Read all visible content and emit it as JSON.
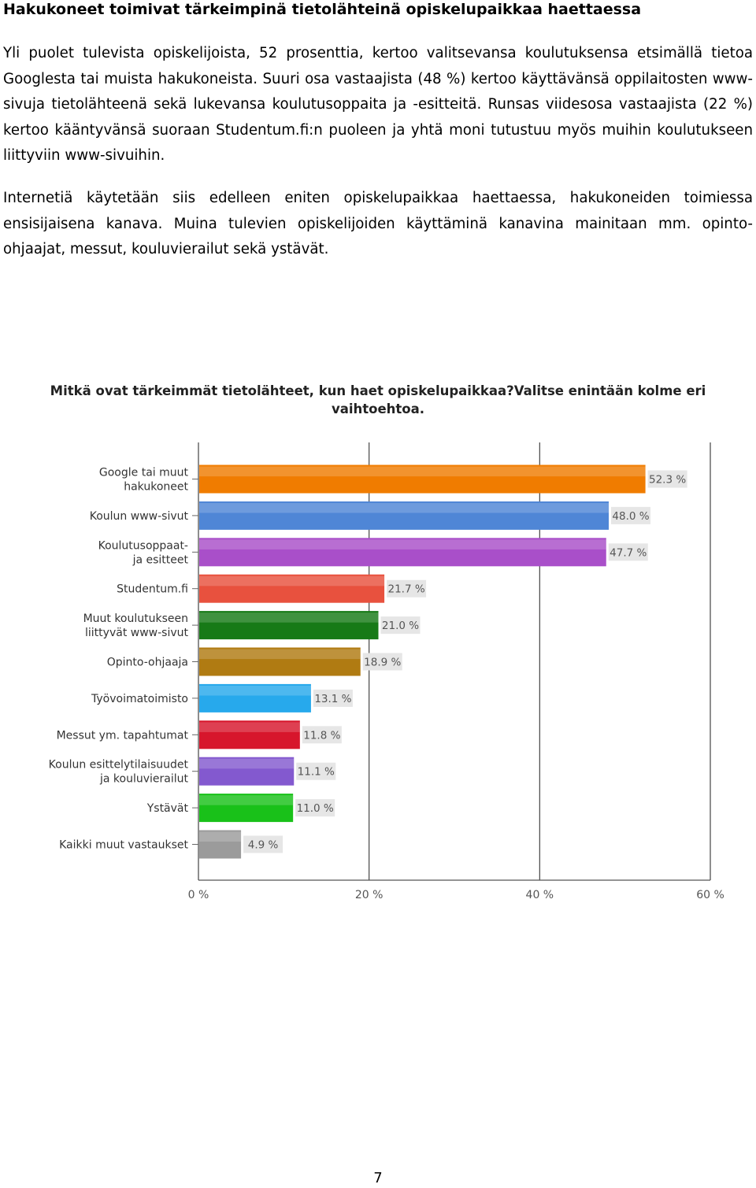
{
  "document": {
    "heading": "Hakukoneet toimivat tärkeimpinä tietolähteinä opiskelupaikkaa haettaessa",
    "paragraphs": [
      "Yli puolet tulevista opiskelijoista, 52 prosenttia, kertoo valitsevansa koulutuksensa etsimällä tietoa Googlesta tai muista hakukoneista. Suuri osa vastaajista (48 %) kertoo käyttävänsä oppilaitosten www-sivuja tietolähteenä sekä lukevansa koulutusoppaita ja -esitteitä. Runsas viidesosa vastaajista (22 %) kertoo kääntyvänsä suoraan Studentum.fi:n puoleen ja yhtä moni tutustuu myös muihin koulutukseen liittyviin www-sivuihin.",
      "Internetiä käytetään siis edelleen eniten opiskelupaikkaa haettaessa, hakukoneiden toimiessa ensisijaisena kanava. Muina tulevien opiskelijoiden käyttäminä kanavina mainitaan mm. opinto-ohjaajat, messut, kouluvierailut sekä ystävät."
    ],
    "page_number": "7"
  },
  "chart_data": {
    "type": "bar",
    "orientation": "horizontal",
    "title": "Mitkä ovat tärkeimmät tietolähteet, kun haet opiskelupaikkaa?Valitse enintään kolme eri vaihtoehtoa.",
    "categories": [
      [
        "Google tai muut",
        "hakukoneet"
      ],
      [
        "Koulun www-sivut"
      ],
      [
        "Koulutusoppaat-",
        "ja esitteet"
      ],
      [
        "Studentum.fi"
      ],
      [
        "Muut koulutukseen",
        "liittyvät www-sivut"
      ],
      [
        "Opinto-ohjaaja"
      ],
      [
        "Työvoimatoimisto"
      ],
      [
        "Messut ym. tapahtumat"
      ],
      [
        "Koulun esittelytilaisuudet",
        "ja kouluvierailut"
      ],
      [
        "Ystävät"
      ],
      [
        "Kaikki muut vastaukset"
      ]
    ],
    "values": [
      52.3,
      48.0,
      47.7,
      21.7,
      21.0,
      18.9,
      13.1,
      11.8,
      11.1,
      11.0,
      4.9
    ],
    "value_labels": [
      "52.3 %",
      "48.0 %",
      "47.7 %",
      "21.7 %",
      "21.0 %",
      "18.9 %",
      "13.1 %",
      "11.8 %",
      "11.1 %",
      "11.0 %",
      "4.9 %"
    ],
    "colors": [
      "#f07c00",
      "#4f86d6",
      "#a94fc9",
      "#e8513e",
      "#177a17",
      "#b07b12",
      "#27a9ec",
      "#d7162c",
      "#8359cf",
      "#19c119",
      "#9b9b9b"
    ],
    "xlim": [
      0,
      60
    ],
    "xticks": [
      0,
      20,
      40,
      60
    ],
    "xtick_labels": [
      "0 %",
      "20 %",
      "40 %",
      "60 %"
    ],
    "grid": "vertical",
    "legend": "none"
  }
}
